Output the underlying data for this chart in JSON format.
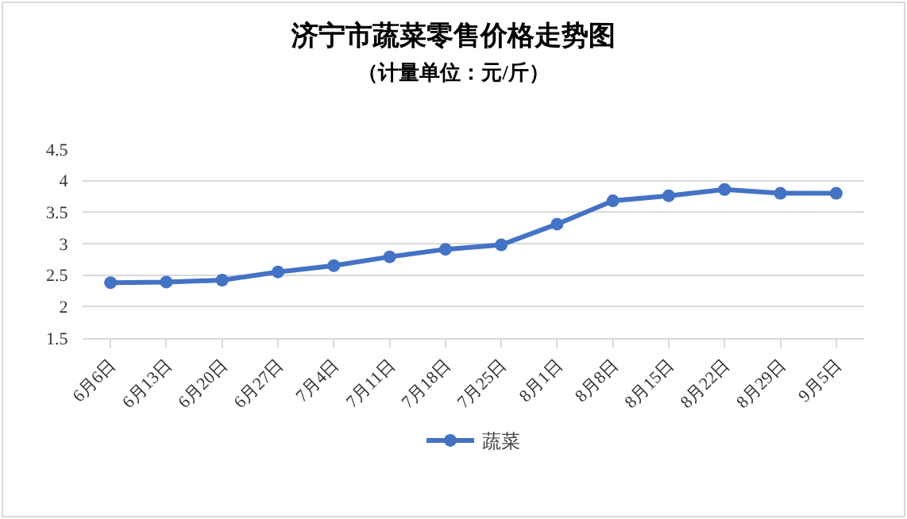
{
  "chart_data": {
    "type": "line",
    "title": "济宁市蔬菜零售价格走势图",
    "subtitle": "（计量单位：元/斤）",
    "categories": [
      "6月6日",
      "6月13日",
      "6月20日",
      "6月27日",
      "7月4日",
      "7月11日",
      "7月18日",
      "7月25日",
      "8月1日",
      "8月8日",
      "8月15日",
      "8月22日",
      "8月29日",
      "9月5日"
    ],
    "series": [
      {
        "name": "蔬菜",
        "color": "#4472c4",
        "values": [
          2.38,
          2.39,
          2.42,
          2.55,
          2.65,
          2.79,
          2.91,
          2.98,
          3.31,
          3.68,
          3.76,
          3.86,
          3.8,
          3.8
        ]
      }
    ],
    "ylim": [
      1.5,
      4.5
    ],
    "yticks": [
      1.5,
      2,
      2.5,
      3,
      3.5,
      4,
      4.5
    ],
    "grid": "y",
    "legend": "bottom",
    "marker": "circle",
    "line_style": "solid"
  }
}
